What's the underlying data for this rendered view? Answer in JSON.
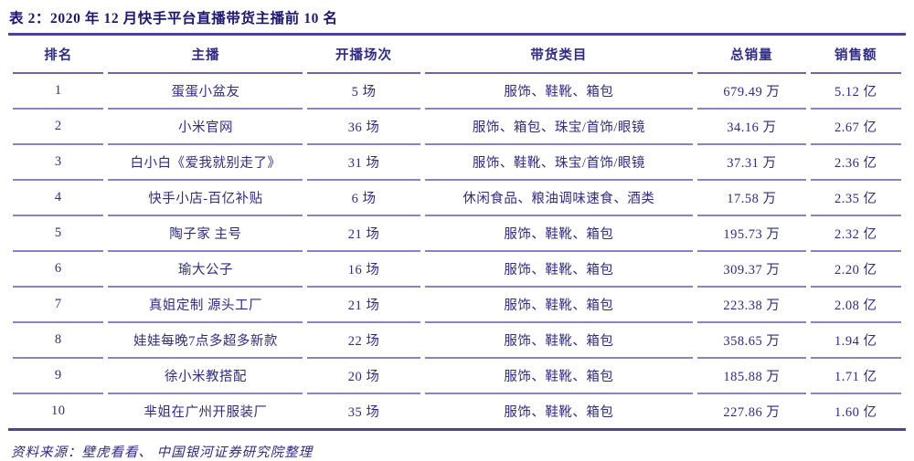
{
  "title": "表 2：2020 年 12 月快手平台直播带货主播前 10 名",
  "colors": {
    "text": "#2f2a85",
    "title_text": "#1c1770",
    "heavy_line": "#4a4398",
    "light_line": "#8a82c4"
  },
  "table": {
    "headers": [
      "排名",
      "主播",
      "开播场次",
      "带货类目",
      "总销量",
      "销售额"
    ],
    "rows": [
      {
        "rank": "1",
        "host": "蛋蛋小盆友",
        "sessions": "5 场",
        "categories": "服饰、鞋靴、箱包",
        "total_sales": "679.49 万",
        "revenue": "5.12 亿"
      },
      {
        "rank": "2",
        "host": "小米官网",
        "sessions": "36 场",
        "categories": "服饰、箱包、珠宝/首饰/眼镜",
        "total_sales": "34.16 万",
        "revenue": "2.67 亿"
      },
      {
        "rank": "3",
        "host": "白小白《爱我就别走了》",
        "sessions": "31 场",
        "categories": "服饰、鞋靴、珠宝/首饰/眼镜",
        "total_sales": "37.31 万",
        "revenue": "2.36 亿"
      },
      {
        "rank": "4",
        "host": "快手小店-百亿补贴",
        "sessions": "6 场",
        "categories": "休闲食品、粮油调味速食、酒类",
        "total_sales": "17.58 万",
        "revenue": "2.35 亿"
      },
      {
        "rank": "5",
        "host": "陶子家 主号",
        "sessions": "21 场",
        "categories": "服饰、鞋靴、箱包",
        "total_sales": "195.73 万",
        "revenue": "2.32 亿"
      },
      {
        "rank": "6",
        "host": "瑜大公子",
        "sessions": "16 场",
        "categories": "服饰、鞋靴、箱包",
        "total_sales": "309.37 万",
        "revenue": "2.20 亿"
      },
      {
        "rank": "7",
        "host": "真姐定制 源头工厂",
        "sessions": "21 场",
        "categories": "服饰、鞋靴、箱包",
        "total_sales": "223.38 万",
        "revenue": "2.08 亿"
      },
      {
        "rank": "8",
        "host": "娃娃每晚7点多超多新款",
        "sessions": "22 场",
        "categories": "服饰、鞋靴、箱包",
        "total_sales": "358.65 万",
        "revenue": "1.94 亿"
      },
      {
        "rank": "9",
        "host": "徐小米教搭配",
        "sessions": "20 场",
        "categories": "服饰、鞋靴、箱包",
        "total_sales": "185.88 万",
        "revenue": "1.71 亿"
      },
      {
        "rank": "10",
        "host": "芈姐在广州开服装厂",
        "sessions": "35 场",
        "categories": "服饰、鞋靴、箱包",
        "total_sales": "227.86 万",
        "revenue": "1.60 亿"
      }
    ]
  },
  "footer": {
    "source": "资料来源：壁虎看看、 中国银河证券研究院整理"
  }
}
